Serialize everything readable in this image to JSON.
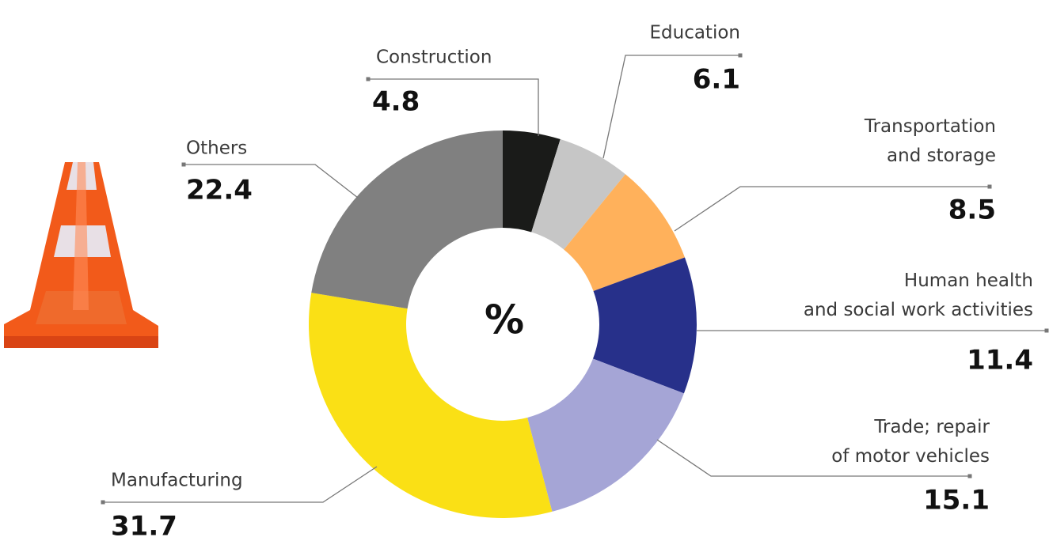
{
  "chart_data": {
    "type": "donut",
    "center_label": "%",
    "categories": [
      "Construction",
      "Education",
      "Transportation\nand storage",
      "Human health\nand social work activities",
      "Trade; repair\nof motor vehicles",
      "Manufacturing",
      "Others"
    ],
    "values": [
      4.8,
      6.1,
      8.5,
      11.4,
      15.1,
      31.7,
      22.4
    ],
    "colors": [
      "#1a1b19",
      "#c6c6c6",
      "#ffb15b",
      "#27308a",
      "#a5a5d6",
      "#fae015",
      "#808080"
    ]
  }
}
